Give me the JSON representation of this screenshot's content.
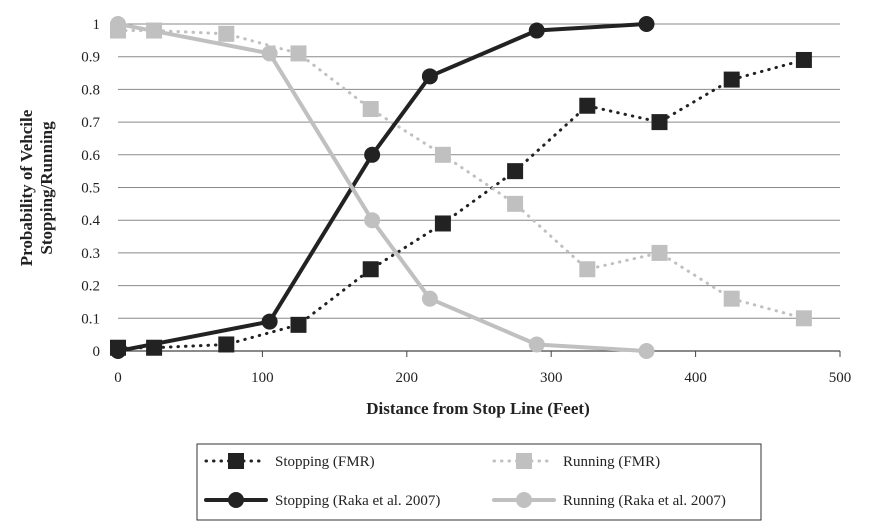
{
  "chart_data": {
    "type": "line",
    "xlabel": "Distance from Stop Line (Feet)",
    "ylabel_lines": [
      "Probability of Vehcile",
      "Stopping/Running"
    ],
    "xlim": [
      0,
      500
    ],
    "ylim": [
      0,
      1
    ],
    "x_ticks": [
      "0",
      "100",
      "200",
      "300",
      "400",
      "500"
    ],
    "y_ticks": [
      "0",
      "0.1",
      "0.2",
      "0.3",
      "0.4",
      "0.5",
      "0.6",
      "0.7",
      "0.8",
      "0.9",
      "1"
    ],
    "grid": "horizontal",
    "legend_position": "bottom",
    "series": [
      {
        "name": "Stopping (FMR)",
        "color": "#222222",
        "line_style": "dotted",
        "marker": "square",
        "x": [
          0,
          25,
          75,
          125,
          175,
          225,
          275,
          325,
          375,
          425,
          475
        ],
        "y": [
          0.01,
          0.01,
          0.02,
          0.08,
          0.25,
          0.39,
          0.55,
          0.75,
          0.7,
          0.83,
          0.89
        ]
      },
      {
        "name": "Running (FMR)",
        "color": "#c0c0c0",
        "line_style": "dotted",
        "marker": "square",
        "x": [
          0,
          25,
          75,
          125,
          175,
          225,
          275,
          325,
          375,
          425,
          475
        ],
        "y": [
          0.98,
          0.98,
          0.97,
          0.91,
          0.74,
          0.6,
          0.45,
          0.25,
          0.3,
          0.16,
          0.1
        ]
      },
      {
        "name": "Stopping (Raka et al. 2007)",
        "color": "#222222",
        "line_style": "solid",
        "marker": "circle",
        "x": [
          0,
          105,
          176,
          216,
          290,
          366
        ],
        "y": [
          0.0,
          0.09,
          0.6,
          0.84,
          0.98,
          1.0
        ]
      },
      {
        "name": "Running (Raka et al. 2007)",
        "color": "#c0c0c0",
        "line_style": "solid",
        "marker": "circle",
        "x": [
          0,
          105,
          176,
          216,
          290,
          366
        ],
        "y": [
          1.0,
          0.91,
          0.4,
          0.16,
          0.02,
          0.0
        ]
      }
    ]
  }
}
